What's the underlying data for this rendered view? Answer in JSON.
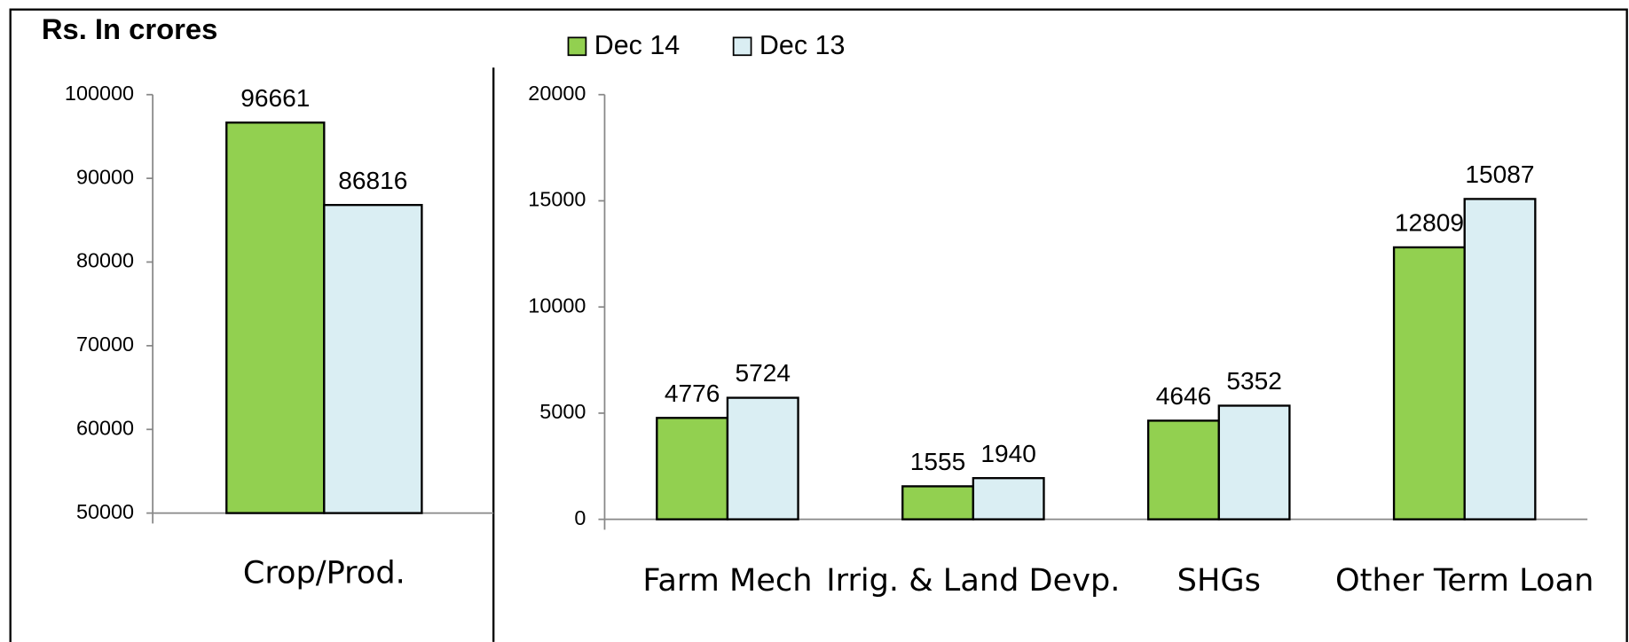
{
  "chart_data": [
    {
      "type": "bar",
      "title": "Rs. In crores",
      "categories": [
        "Crop/Prod."
      ],
      "series": [
        {
          "color": "#92d050",
          "values": [
            96661
          ]
        },
        {
          "color": "#daeef3",
          "values": [
            86816
          ]
        }
      ],
      "ylim": [
        50000,
        100000
      ],
      "yticks": [
        50000,
        60000,
        70000,
        80000,
        90000,
        100000
      ]
    },
    {
      "type": "bar",
      "categories": [
        "Farm Mech",
        "Irrig. & Land Devp.",
        "SHGs",
        "Other Term Loan"
      ],
      "series": [
        {
          "name": "Dec 14",
          "color": "#92d050",
          "values": [
            4776,
            1555,
            4646,
            12809
          ]
        },
        {
          "name": "Dec 13",
          "color": "#daeef3",
          "values": [
            5724,
            1940,
            5352,
            15087
          ]
        }
      ],
      "ylim": [
        0,
        20000
      ],
      "yticks": [
        0,
        5000,
        10000,
        15000,
        20000
      ]
    }
  ]
}
